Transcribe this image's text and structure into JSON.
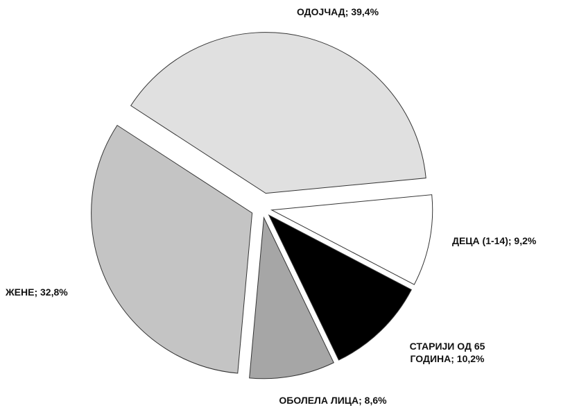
{
  "chart_data": {
    "type": "pie",
    "values": [
      39.4,
      9.2,
      10.2,
      8.6,
      32.8
    ],
    "value_labels": [
      "ОДОЈЧАД; 39,4%",
      "ДЕЦА (1-14); 9,2%",
      "СТАРИЈИ ОД 65\nГОДИНА; 10,2%",
      "ОБОЛЕЛА ЛИЦА; 8,6%",
      "ЖЕНЕ; 32,8%"
    ],
    "colors": [
      "#e0e0e0",
      "#ffffff",
      "#000000",
      "#a6a6a6",
      "#c4c4c4"
    ]
  }
}
